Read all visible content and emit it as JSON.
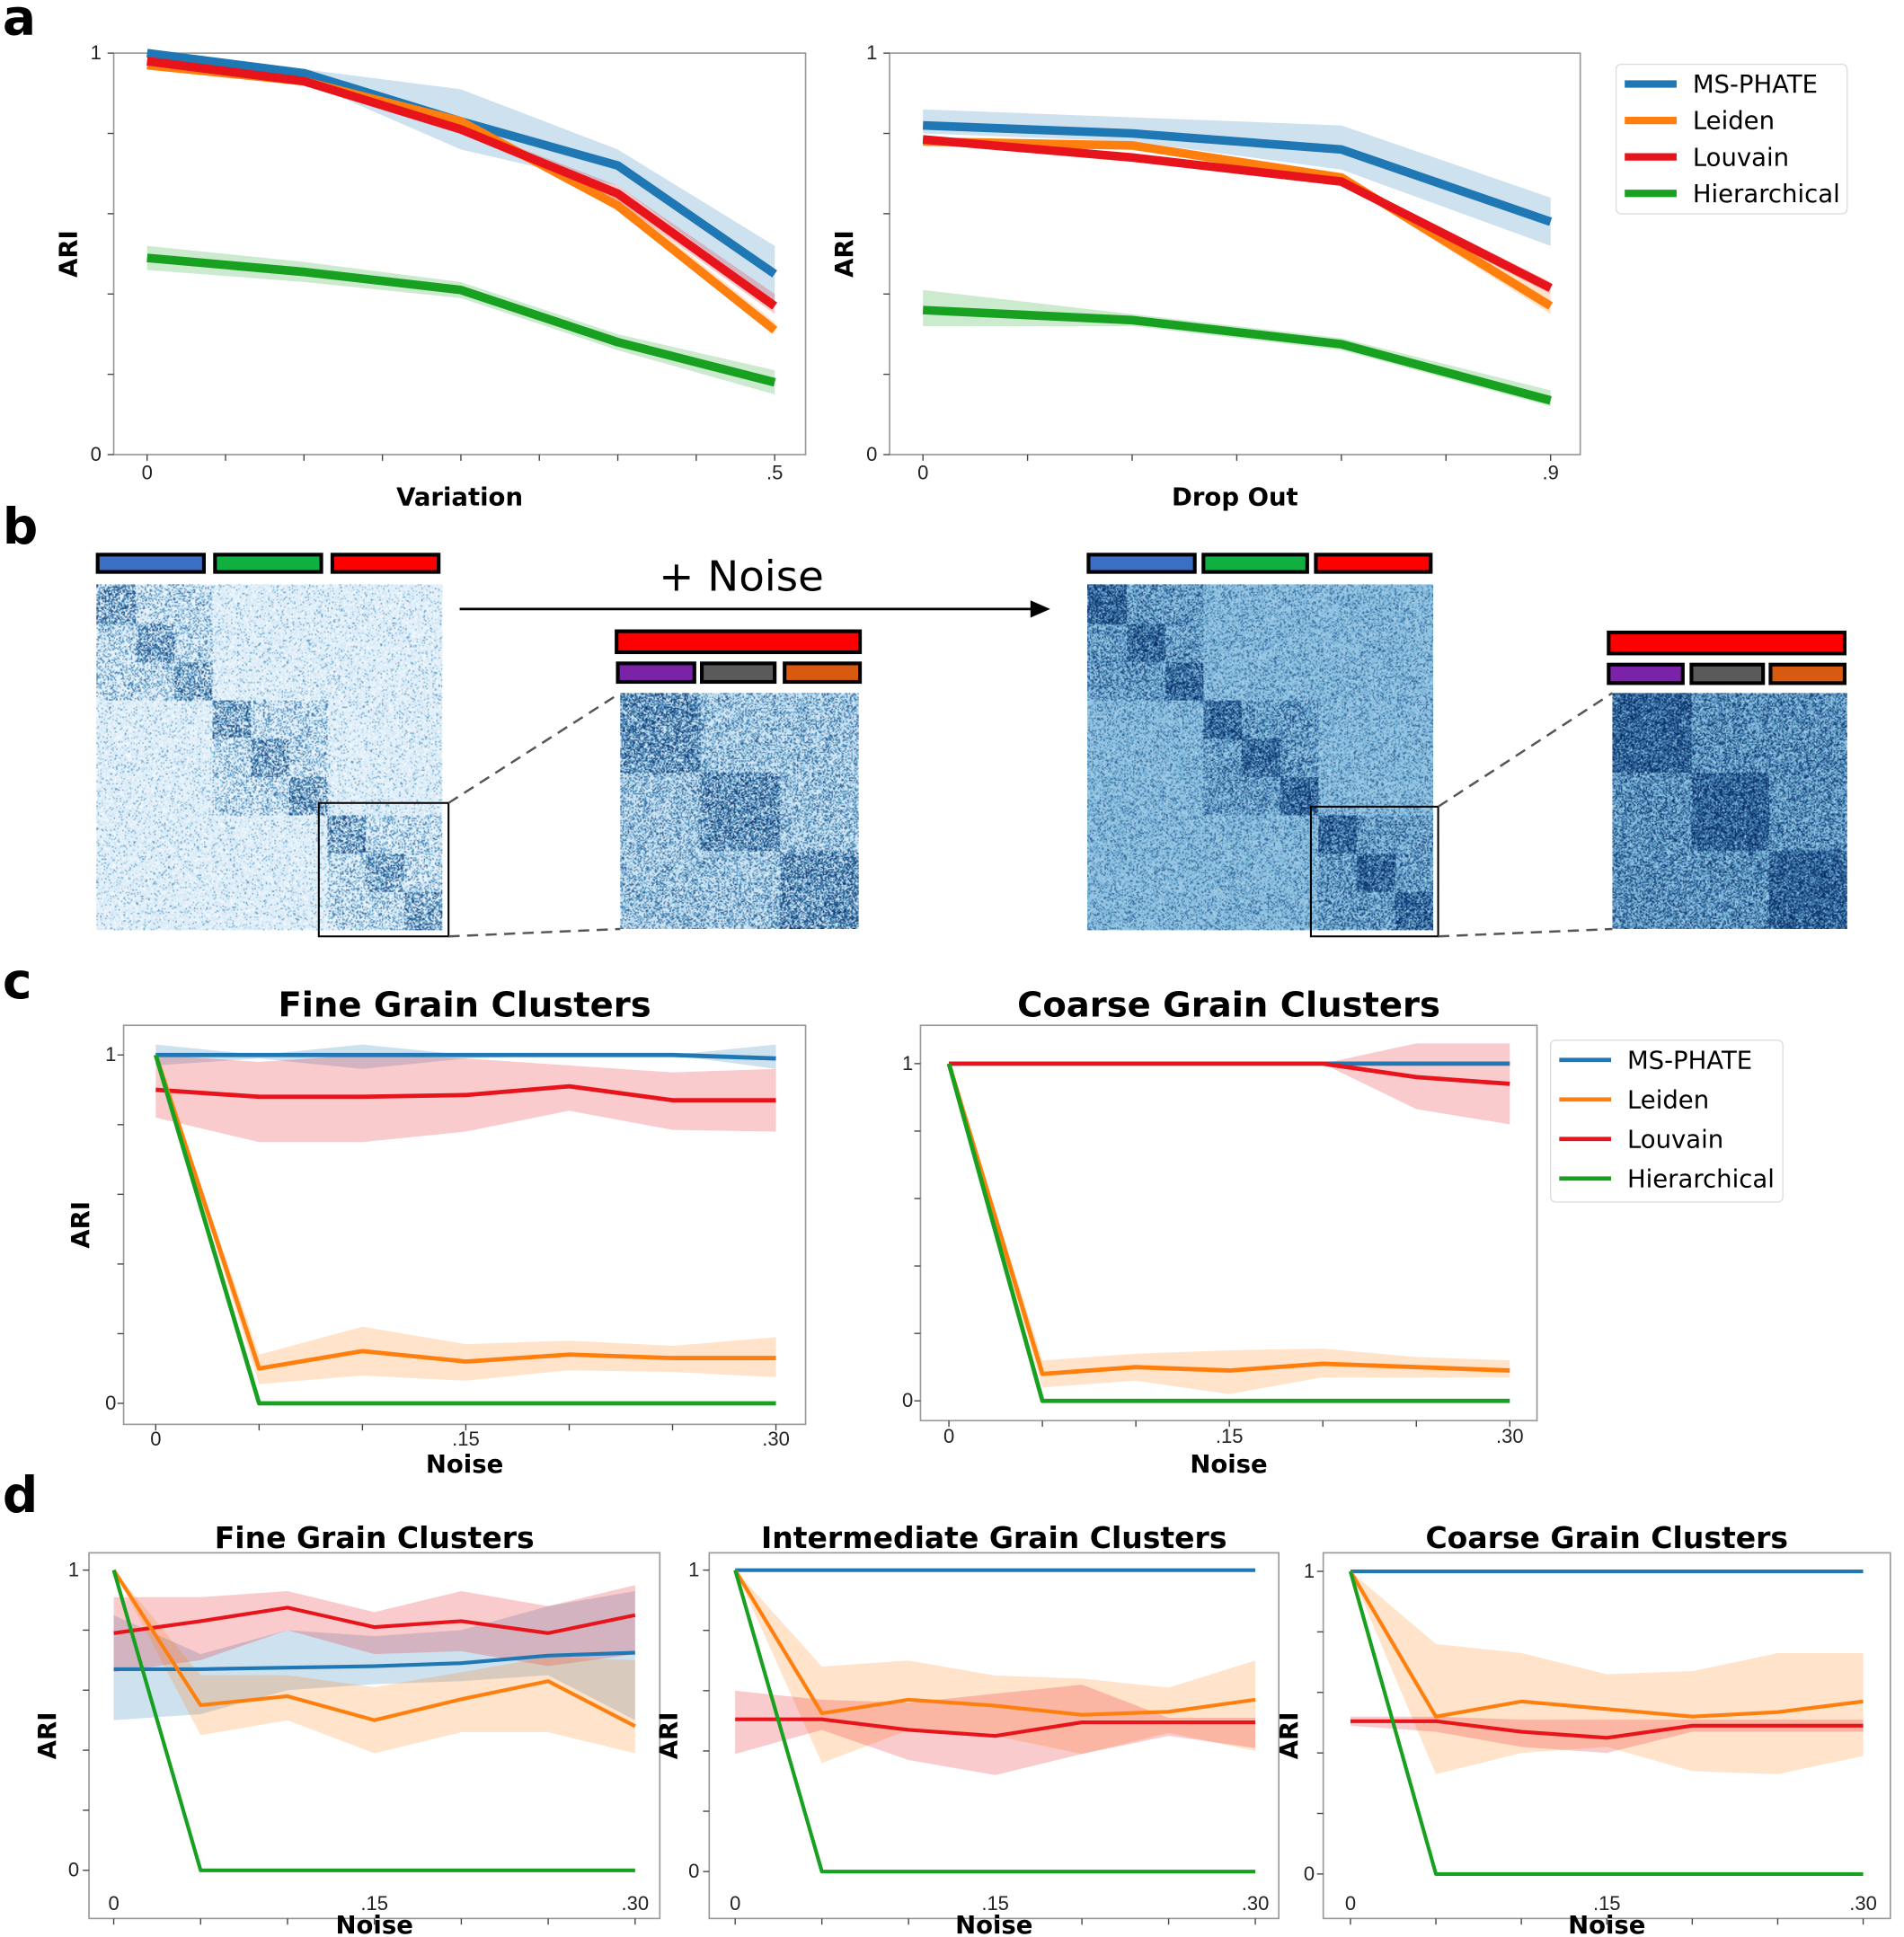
{
  "panel_labels": [
    "a",
    "b",
    "c",
    "d"
  ],
  "colors": {
    "MS-PHATE": "#1f77b4",
    "Leiden": "#ff7f0e",
    "Louvain": "#e8141c",
    "Hierarchical": "#18a020"
  },
  "panel_b": {
    "annotation": "+ Noise",
    "coarse_cluster_colors": [
      "#3a6fc4",
      "#10b040",
      "#ff0000"
    ],
    "fine_cluster_colors": [
      "#7a22a8",
      "#5a5a5a",
      "#d85a10"
    ],
    "heatmap_colormap": "Blues"
  },
  "chart_data": [
    {
      "id": "a-variation",
      "type": "line",
      "title": "",
      "xlabel": "Variation",
      "ylabel": "ARI",
      "x": [
        0,
        0.125,
        0.25,
        0.375,
        0.5
      ],
      "xlim": [
        0,
        0.5
      ],
      "ylim": [
        0,
        1
      ],
      "xticks": [
        {
          "v": 0,
          "label": "0"
        },
        {
          "v": 0.5,
          "label": ".5"
        }
      ],
      "yticks": [
        {
          "v": 0,
          "label": "0"
        },
        {
          "v": 1,
          "label": "1"
        }
      ],
      "legend": "none",
      "series": [
        {
          "name": "MS-PHATE",
          "values": [
            1.0,
            0.95,
            0.83,
            0.72,
            0.45
          ],
          "band_lower": [
            0.99,
            0.93,
            0.76,
            0.67,
            0.38
          ],
          "band_upper": [
            1.0,
            0.96,
            0.91,
            0.76,
            0.52
          ]
        },
        {
          "name": "Leiden",
          "values": [
            0.97,
            0.93,
            0.83,
            0.62,
            0.31
          ],
          "band_lower": [
            0.96,
            0.92,
            0.82,
            0.61,
            0.3
          ],
          "band_upper": [
            0.98,
            0.94,
            0.84,
            0.64,
            0.33
          ]
        },
        {
          "name": "Louvain",
          "values": [
            0.98,
            0.93,
            0.81,
            0.65,
            0.37
          ],
          "band_lower": [
            0.97,
            0.92,
            0.8,
            0.63,
            0.35
          ],
          "band_upper": [
            0.99,
            0.94,
            0.82,
            0.67,
            0.4
          ]
        },
        {
          "name": "Hierarchical",
          "values": [
            0.49,
            0.455,
            0.41,
            0.28,
            0.18
          ],
          "band_lower": [
            0.46,
            0.43,
            0.39,
            0.26,
            0.15
          ],
          "band_upper": [
            0.52,
            0.48,
            0.43,
            0.3,
            0.21
          ]
        }
      ]
    },
    {
      "id": "a-dropout",
      "type": "line",
      "title": "",
      "xlabel": "Drop Out",
      "ylabel": "ARI",
      "x": [
        0,
        0.3,
        0.6,
        0.9
      ],
      "xlim": [
        0,
        0.9
      ],
      "ylim": [
        0,
        1
      ],
      "xticks": [
        {
          "v": 0,
          "label": "0"
        },
        {
          "v": 0.9,
          "label": ".9"
        }
      ],
      "yticks": [
        {
          "v": 0,
          "label": "0"
        },
        {
          "v": 1,
          "label": "1"
        }
      ],
      "legend": "right",
      "series": [
        {
          "name": "MS-PHATE",
          "values": [
            0.82,
            0.8,
            0.76,
            0.58
          ],
          "band_lower": [
            0.8,
            0.78,
            0.71,
            0.52
          ],
          "band_upper": [
            0.86,
            0.84,
            0.82,
            0.64
          ]
        },
        {
          "name": "Leiden",
          "values": [
            0.78,
            0.77,
            0.69,
            0.37
          ],
          "band_lower": [
            0.77,
            0.76,
            0.68,
            0.35
          ],
          "band_upper": [
            0.79,
            0.78,
            0.7,
            0.4
          ]
        },
        {
          "name": "Louvain",
          "values": [
            0.785,
            0.74,
            0.68,
            0.415
          ],
          "band_lower": [
            0.775,
            0.73,
            0.67,
            0.4
          ],
          "band_upper": [
            0.795,
            0.75,
            0.69,
            0.43
          ]
        },
        {
          "name": "Hierarchical",
          "values": [
            0.36,
            0.335,
            0.275,
            0.135
          ],
          "band_lower": [
            0.32,
            0.32,
            0.26,
            0.12
          ],
          "band_upper": [
            0.41,
            0.35,
            0.29,
            0.16
          ]
        }
      ]
    },
    {
      "id": "c-fine",
      "type": "line",
      "title": "Fine Grain Clusters",
      "xlabel": "Noise",
      "ylabel": "ARI",
      "x": [
        0,
        0.05,
        0.1,
        0.15,
        0.2,
        0.25,
        0.3
      ],
      "xlim": [
        0,
        0.3
      ],
      "ylim": [
        0,
        1
      ],
      "xticks": [
        {
          "v": 0,
          "label": "0"
        },
        {
          "v": 0.15,
          "label": ".15"
        },
        {
          "v": 0.3,
          "label": ".30"
        }
      ],
      "yticks": [
        {
          "v": 0,
          "label": "0"
        },
        {
          "v": 1,
          "label": "1"
        }
      ],
      "legend": "none",
      "series": [
        {
          "name": "MS-PHATE",
          "values": [
            1,
            1,
            1,
            1,
            1,
            1,
            0.99
          ],
          "band_lower": [
            0.97,
            0.99,
            0.96,
            0.99,
            1,
            1,
            0.96
          ],
          "band_upper": [
            1.03,
            1.0,
            1.03,
            1.0,
            1.0,
            1.0,
            1.03
          ]
        },
        {
          "name": "Louvain",
          "values": [
            0.9,
            0.88,
            0.88,
            0.885,
            0.91,
            0.87,
            0.87
          ],
          "band_lower": [
            0.82,
            0.75,
            0.75,
            0.78,
            0.84,
            0.785,
            0.78
          ],
          "band_upper": [
            1.0,
            0.98,
            1.0,
            0.99,
            0.97,
            0.95,
            0.96
          ]
        },
        {
          "name": "Leiden",
          "values": [
            1,
            0.1,
            0.15,
            0.12,
            0.14,
            0.13,
            0.13
          ],
          "band_lower": [
            1,
            0.055,
            0.08,
            0.065,
            0.095,
            0.09,
            0.075
          ],
          "band_upper": [
            1,
            0.14,
            0.22,
            0.17,
            0.18,
            0.165,
            0.19
          ]
        },
        {
          "name": "Hierarchical",
          "values": [
            1,
            0,
            0,
            0,
            0,
            0,
            0
          ]
        }
      ]
    },
    {
      "id": "c-coarse",
      "type": "line",
      "title": "Coarse Grain Clusters",
      "xlabel": "Noise",
      "ylabel": "",
      "x": [
        0,
        0.05,
        0.1,
        0.15,
        0.2,
        0.25,
        0.3
      ],
      "xlim": [
        0,
        0.3
      ],
      "ylim": [
        0,
        1
      ],
      "xticks": [
        {
          "v": 0,
          "label": "0"
        },
        {
          "v": 0.15,
          "label": ".15"
        },
        {
          "v": 0.3,
          "label": ".30"
        }
      ],
      "yticks": [
        {
          "v": 0,
          "label": "0"
        },
        {
          "v": 1,
          "label": "1"
        }
      ],
      "legend": "right",
      "series": [
        {
          "name": "MS-PHATE",
          "values": [
            1,
            1,
            1,
            1,
            1,
            1,
            1
          ]
        },
        {
          "name": "Leiden",
          "values": [
            1,
            0.08,
            0.1,
            0.09,
            0.11,
            0.1,
            0.09
          ],
          "band_lower": [
            1,
            0.04,
            0.06,
            0.02,
            0.07,
            0.07,
            0.07
          ],
          "band_upper": [
            1,
            0.12,
            0.14,
            0.15,
            0.155,
            0.13,
            0.12
          ]
        },
        {
          "name": "Louvain",
          "values": [
            1,
            1,
            1,
            1,
            1,
            0.96,
            0.94
          ],
          "band_lower": [
            1,
            1,
            1,
            1,
            1,
            0.865,
            0.82
          ],
          "band_upper": [
            1,
            1,
            1,
            1,
            1,
            1.06,
            1.06
          ]
        },
        {
          "name": "Hierarchical",
          "values": [
            1,
            0,
            0,
            0,
            0,
            0,
            0
          ]
        }
      ]
    },
    {
      "id": "d-fine",
      "type": "line",
      "title": "Fine Grain Clusters",
      "xlabel": "Noise",
      "ylabel": "ARI",
      "x": [
        0,
        0.05,
        0.1,
        0.15,
        0.2,
        0.25,
        0.3
      ],
      "xlim": [
        0,
        0.3
      ],
      "ylim": [
        0,
        1
      ],
      "xticks": [
        {
          "v": 0,
          "label": "0"
        },
        {
          "v": 0.15,
          "label": ".15"
        },
        {
          "v": 0.3,
          "label": ".30"
        }
      ],
      "yticks": [
        {
          "v": 0,
          "label": "0"
        },
        {
          "v": 1,
          "label": "1"
        }
      ],
      "legend": "none",
      "series": [
        {
          "name": "MS-PHATE",
          "values": [
            0.67,
            0.67,
            0.675,
            0.68,
            0.69,
            0.715,
            0.725
          ],
          "band_lower": [
            0.5,
            0.52,
            0.6,
            0.62,
            0.63,
            0.65,
            0.5
          ],
          "band_upper": [
            0.85,
            0.72,
            0.8,
            0.78,
            0.8,
            0.88,
            0.93
          ]
        },
        {
          "name": "Louvain",
          "values": [
            0.79,
            0.83,
            0.875,
            0.81,
            0.83,
            0.79,
            0.85
          ],
          "band_lower": [
            0.66,
            0.7,
            0.8,
            0.72,
            0.73,
            0.68,
            0.72
          ],
          "band_upper": [
            0.91,
            0.91,
            0.93,
            0.86,
            0.93,
            0.88,
            0.95
          ]
        },
        {
          "name": "Leiden",
          "values": [
            1,
            0.55,
            0.58,
            0.5,
            0.57,
            0.63,
            0.48
          ],
          "band_lower": [
            1,
            0.45,
            0.5,
            0.39,
            0.46,
            0.46,
            0.39
          ],
          "band_upper": [
            1,
            0.65,
            0.65,
            0.61,
            0.66,
            0.71,
            0.7
          ]
        },
        {
          "name": "Hierarchical",
          "values": [
            1,
            0,
            0,
            0,
            0,
            0,
            0
          ]
        }
      ]
    },
    {
      "id": "d-intermediate",
      "type": "line",
      "title": "Intermediate Grain Clusters",
      "xlabel": "Noise",
      "ylabel": "ARI",
      "x": [
        0,
        0.05,
        0.1,
        0.15,
        0.2,
        0.25,
        0.3
      ],
      "xlim": [
        0,
        0.3
      ],
      "ylim": [
        0,
        1
      ],
      "xticks": [
        {
          "v": 0,
          "label": "0"
        },
        {
          "v": 0.15,
          "label": ".15"
        },
        {
          "v": 0.3,
          "label": ".30"
        }
      ],
      "yticks": [
        {
          "v": 0,
          "label": "0"
        },
        {
          "v": 1,
          "label": "1"
        }
      ],
      "legend": "none",
      "series": [
        {
          "name": "MS-PHATE",
          "values": [
            1,
            1,
            1,
            1,
            1,
            1,
            1
          ]
        },
        {
          "name": "Leiden",
          "values": [
            1,
            0.525,
            0.57,
            0.55,
            0.52,
            0.53,
            0.57
          ],
          "band_lower": [
            1,
            0.36,
            0.47,
            0.45,
            0.39,
            0.46,
            0.4
          ],
          "band_upper": [
            1,
            0.68,
            0.7,
            0.65,
            0.64,
            0.61,
            0.7
          ]
        },
        {
          "name": "Louvain",
          "values": [
            0.505,
            0.505,
            0.47,
            0.45,
            0.495,
            0.495,
            0.495
          ],
          "band_lower": [
            0.39,
            0.47,
            0.37,
            0.32,
            0.39,
            0.45,
            0.41
          ],
          "band_upper": [
            0.6,
            0.57,
            0.56,
            0.59,
            0.62,
            0.51,
            0.51
          ]
        },
        {
          "name": "Hierarchical",
          "values": [
            1,
            0,
            0,
            0,
            0,
            0,
            0
          ]
        }
      ]
    },
    {
      "id": "d-coarse",
      "type": "line",
      "title": "Coarse Grain Clusters",
      "xlabel": "Noise",
      "ylabel": "ARI",
      "x": [
        0,
        0.05,
        0.1,
        0.15,
        0.2,
        0.25,
        0.3
      ],
      "xlim": [
        0,
        0.3
      ],
      "ylim": [
        0,
        1
      ],
      "xticks": [
        {
          "v": 0,
          "label": "0"
        },
        {
          "v": 0.15,
          "label": ".15"
        },
        {
          "v": 0.3,
          "label": ".30"
        }
      ],
      "yticks": [
        {
          "v": 0,
          "label": "0"
        },
        {
          "v": 1,
          "label": "1"
        }
      ],
      "legend": "none",
      "series": [
        {
          "name": "MS-PHATE",
          "values": [
            1,
            1,
            1,
            1,
            1,
            1,
            1
          ]
        },
        {
          "name": "Leiden",
          "values": [
            1,
            0.52,
            0.57,
            0.545,
            0.52,
            0.535,
            0.57
          ],
          "band_lower": [
            1,
            0.33,
            0.4,
            0.42,
            0.34,
            0.33,
            0.39
          ],
          "band_upper": [
            1,
            0.76,
            0.73,
            0.66,
            0.67,
            0.73,
            0.73
          ]
        },
        {
          "name": "Louvain",
          "values": [
            0.505,
            0.505,
            0.47,
            0.45,
            0.49,
            0.49,
            0.49
          ],
          "band_lower": [
            0.49,
            0.47,
            0.42,
            0.4,
            0.47,
            0.47,
            0.47
          ],
          "band_upper": [
            0.52,
            0.52,
            0.51,
            0.51,
            0.51,
            0.51,
            0.51
          ]
        },
        {
          "name": "Hierarchical",
          "values": [
            1,
            0,
            0,
            0,
            0,
            0,
            0
          ]
        }
      ]
    }
  ]
}
